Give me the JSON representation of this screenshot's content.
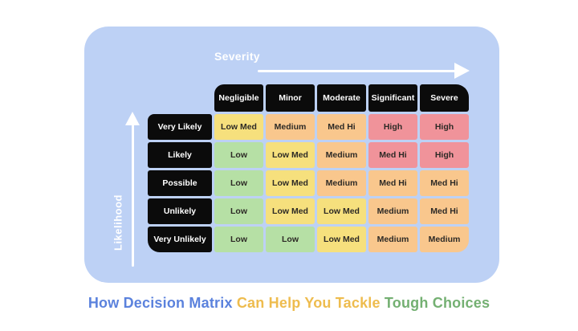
{
  "axes": {
    "severity_label": "Severity",
    "likelihood_label": "Likelihood"
  },
  "matrix": {
    "column_headers": [
      "Negligible",
      "Minor",
      "Moderate",
      "Significant",
      "Severe"
    ],
    "rows": [
      {
        "label": "Very Likely",
        "cells": [
          {
            "text": "Low Med",
            "tone": "yellow"
          },
          {
            "text": "Medium",
            "tone": "orange"
          },
          {
            "text": "Med Hi",
            "tone": "orange"
          },
          {
            "text": "High",
            "tone": "pink"
          },
          {
            "text": "High",
            "tone": "pink"
          }
        ]
      },
      {
        "label": "Likely",
        "cells": [
          {
            "text": "Low",
            "tone": "green"
          },
          {
            "text": "Low Med",
            "tone": "yellow"
          },
          {
            "text": "Medium",
            "tone": "orange"
          },
          {
            "text": "Med Hi",
            "tone": "pink"
          },
          {
            "text": "High",
            "tone": "pink"
          }
        ]
      },
      {
        "label": "Possible",
        "cells": [
          {
            "text": "Low",
            "tone": "green"
          },
          {
            "text": "Low Med",
            "tone": "yellow"
          },
          {
            "text": "Medium",
            "tone": "orange"
          },
          {
            "text": "Med Hi",
            "tone": "orange"
          },
          {
            "text": "Med Hi",
            "tone": "orange"
          }
        ]
      },
      {
        "label": "Unlikely",
        "cells": [
          {
            "text": "Low",
            "tone": "green"
          },
          {
            "text": "Low Med",
            "tone": "yellow"
          },
          {
            "text": "Low Med",
            "tone": "yellow"
          },
          {
            "text": "Medium",
            "tone": "orange"
          },
          {
            "text": "Med Hi",
            "tone": "orange"
          }
        ]
      },
      {
        "label": "Very Unlikely",
        "cells": [
          {
            "text": "Low",
            "tone": "green"
          },
          {
            "text": "Low",
            "tone": "green"
          },
          {
            "text": "Low Med",
            "tone": "yellow"
          },
          {
            "text": "Medium",
            "tone": "orange"
          },
          {
            "text": "Medium",
            "tone": "orange"
          }
        ]
      }
    ]
  },
  "tone_colors": {
    "green": "#b6e0a5",
    "yellow": "#f6e07d",
    "orange": "#f9c78d",
    "pink": "#f0939a"
  },
  "theme": {
    "card_background": "#bdd1f5",
    "header_background": "#0b0b0b",
    "axis_text": "#ffffff"
  },
  "caption": {
    "segments": [
      {
        "text": "How Decision Matrix ",
        "color": "#5b82dd"
      },
      {
        "text": "Can Help You Tackle ",
        "color": "#eebc4e"
      },
      {
        "text": "Tough Choices",
        "color": "#74b072"
      }
    ]
  }
}
